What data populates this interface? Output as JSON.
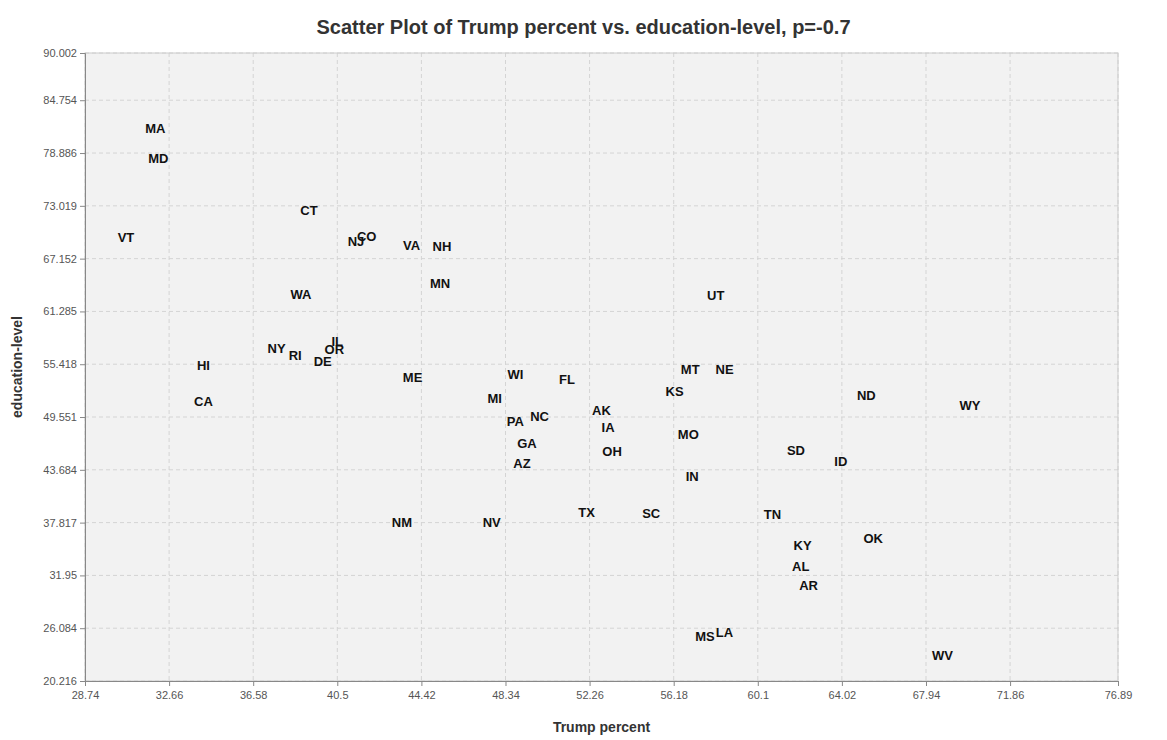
{
  "chart_data": {
    "type": "scatter",
    "title": "Scatter Plot of Trump percent vs. education-level, p=-0.7",
    "x_label": "Trump percent",
    "y_label": "education-level",
    "labels": [
      "MA",
      "MD",
      "VT",
      "CT",
      "NJ",
      "CO",
      "VA",
      "NH",
      "MN",
      "WA",
      "UT",
      "IL",
      "NY",
      "RI",
      "OR",
      "DE",
      "HI",
      "MT",
      "NE",
      "WI",
      "ME",
      "FL",
      "KS",
      "ND",
      "WY",
      "CA",
      "MI",
      "AK",
      "NC",
      "PA",
      "IA",
      "MO",
      "GA",
      "OH",
      "SD",
      "ID",
      "AZ",
      "IN",
      "TX",
      "SC",
      "TN",
      "NM",
      "NV",
      "OK",
      "KY",
      "AL",
      "AR",
      "MS",
      "LA",
      "WV"
    ],
    "x": [
      32.02,
      32.16,
      30.65,
      39.18,
      41.37,
      41.87,
      43.96,
      45.38,
      45.29,
      38.81,
      58.14,
      40.5,
      37.67,
      38.54,
      40.36,
      39.82,
      34.26,
      56.95,
      58.55,
      48.8,
      44.01,
      51.21,
      56.22,
      65.16,
      69.99,
      34.26,
      47.84,
      52.81,
      49.93,
      48.8,
      53.12,
      56.86,
      49.34,
      53.31,
      61.88,
      63.97,
      49.11,
      57.04,
      52.12,
      55.13,
      60.78,
      43.51,
      47.7,
      65.48,
      62.19,
      62.1,
      62.47,
      57.64,
      58.55,
      68.71
    ],
    "values": [
      81.57,
      78.24,
      69.5,
      72.48,
      69.05,
      69.6,
      68.61,
      68.5,
      64.4,
      63.18,
      63.07,
      57.98,
      57.2,
      56.43,
      57.09,
      55.76,
      55.32,
      54.88,
      54.88,
      54.32,
      53.99,
      53.77,
      52.44,
      51.89,
      50.78,
      51.22,
      51.56,
      50.23,
      49.56,
      49.01,
      48.35,
      47.57,
      46.57,
      45.69,
      45.8,
      44.58,
      44.36,
      42.92,
      38.93,
      38.82,
      38.71,
      37.82,
      37.82,
      36.05,
      35.28,
      32.95,
      30.85,
      25.2,
      25.64,
      23.1
    ],
    "marker": "label",
    "color": "#111111",
    "xlim": [
      28.74,
      76.89
    ],
    "xticks": [
      28.74,
      32.66,
      36.58,
      40.5,
      44.42,
      48.34,
      52.26,
      56.18,
      60.1,
      64.02,
      67.94,
      71.86,
      76.89
    ],
    "ylim": [
      20.216,
      90.002
    ],
    "yticks": [
      20.216,
      26.084,
      31.95,
      37.817,
      43.684,
      49.551,
      55.418,
      61.285,
      67.152,
      73.019,
      78.886,
      84.754,
      90.002
    ],
    "grid": true
  }
}
